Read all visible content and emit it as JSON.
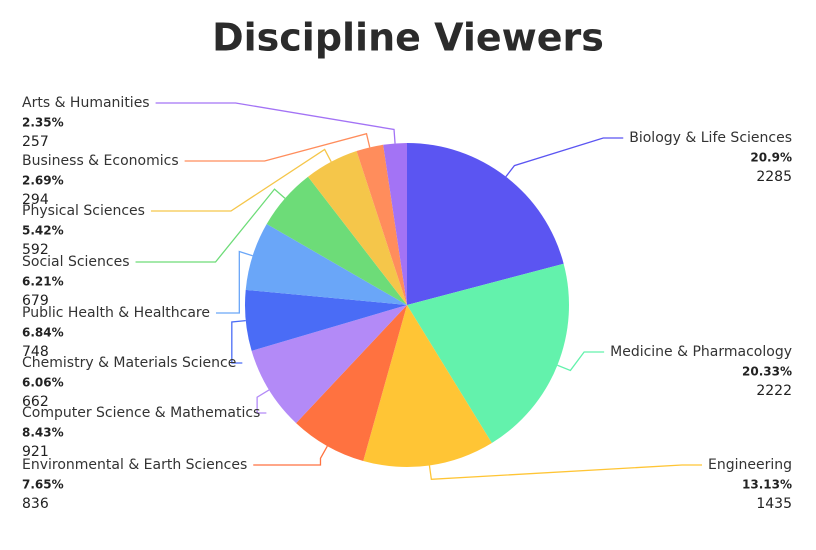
{
  "chart_data": {
    "type": "pie",
    "title": "Discipline Viewers",
    "categories": [
      "Biology & Life Sciences",
      "Medicine & Pharmacology",
      "Engineering",
      "Environmental & Earth Sciences",
      "Computer Science & Mathematics",
      "Chemistry & Materials Science",
      "Public Health & Healthcare",
      "Social Sciences",
      "Physical Sciences",
      "Business & Economics",
      "Arts & Humanities"
    ],
    "values": [
      20.9,
      20.33,
      13.13,
      7.65,
      8.43,
      6.06,
      6.84,
      6.21,
      5.42,
      2.69,
      2.35
    ],
    "value_labels": [
      "20.9%",
      "20.33%",
      "13.13%",
      "7.65%",
      "8.43%",
      "6.06%",
      "6.84%",
      "6.21%",
      "5.42%",
      "2.69%",
      "2.35%"
    ],
    "counts": [
      2285,
      2222,
      1435,
      836,
      921,
      662,
      748,
      679,
      592,
      294,
      257
    ],
    "colors": [
      "#5b55f2",
      "#63f2ac",
      "#ffc535",
      "#ff7240",
      "#b38af7",
      "#4a6cf6",
      "#6aa6f8",
      "#6ddc78",
      "#f5c64a",
      "#ff8d5c",
      "#a373f5"
    ]
  }
}
